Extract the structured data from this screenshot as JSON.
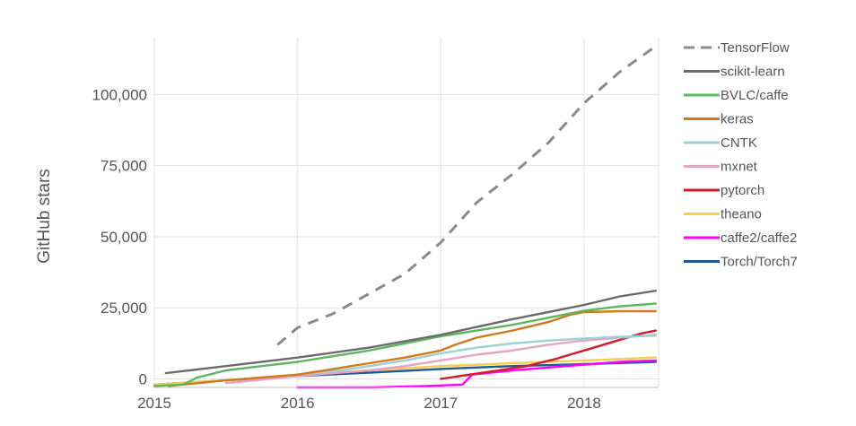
{
  "chart_data": {
    "type": "line",
    "title": "",
    "xlabel": "",
    "ylabel": "GitHub stars",
    "xlim": [
      2015.0,
      2018.52
    ],
    "ylim": [
      -3000,
      120000
    ],
    "xticks": [
      {
        "value": 2015,
        "label": "2015"
      },
      {
        "value": 2016,
        "label": "2016"
      },
      {
        "value": 2017,
        "label": "2017"
      },
      {
        "value": 2018,
        "label": "2018"
      }
    ],
    "yticks": [
      {
        "value": 0,
        "label": "0"
      },
      {
        "value": 25000,
        "label": "25,000"
      },
      {
        "value": 50000,
        "label": "50,000"
      },
      {
        "value": 75000,
        "label": "75,000"
      },
      {
        "value": 100000,
        "label": "100,000"
      }
    ],
    "grid": true,
    "legend_position": "right",
    "series": [
      {
        "name": "TensorFlow",
        "color": "#8a8a8a",
        "dashed": true,
        "x": [
          2015.86,
          2016.0,
          2016.25,
          2016.5,
          2016.75,
          2017.0,
          2017.25,
          2017.5,
          2017.75,
          2018.0,
          2018.25,
          2018.5
        ],
        "y": [
          12000,
          18000,
          23000,
          30000,
          37000,
          48000,
          62000,
          72000,
          83000,
          97000,
          108000,
          117000
        ]
      },
      {
        "name": "scikit-learn",
        "color": "#6b6b6b",
        "dashed": false,
        "x": [
          2015.08,
          2015.5,
          2016.0,
          2016.5,
          2017.0,
          2017.5,
          2018.0,
          2018.25,
          2018.5
        ],
        "y": [
          2000,
          4500,
          7500,
          11000,
          15500,
          21000,
          26000,
          29000,
          31000
        ]
      },
      {
        "name": "BVLC/caffe",
        "color": "#5cb85c",
        "dashed": false,
        "x": [
          2015.0,
          2015.2,
          2015.3,
          2015.5,
          2015.75,
          2016.0,
          2016.25,
          2016.5,
          2016.75,
          2017.0,
          2017.25,
          2017.5,
          2017.75,
          2018.0,
          2018.25,
          2018.5
        ],
        "y": [
          -2500,
          -2000,
          500,
          3000,
          4500,
          6000,
          8000,
          10000,
          12500,
          15000,
          17000,
          19000,
          21500,
          24000,
          25500,
          26500
        ]
      },
      {
        "name": "keras",
        "color": "#d07a1e",
        "dashed": false,
        "x": [
          2015.1,
          2015.5,
          2016.0,
          2016.25,
          2016.5,
          2016.75,
          2017.0,
          2017.1,
          2017.25,
          2017.5,
          2017.75,
          2017.9,
          2018.0,
          2018.25,
          2018.5
        ],
        "y": [
          -2500,
          -500,
          1500,
          3500,
          5500,
          7500,
          10000,
          12000,
          14500,
          17000,
          20000,
          22500,
          23500,
          23800,
          23800
        ]
      },
      {
        "name": "CNTK",
        "color": "#9ccfd6",
        "dashed": false,
        "x": [
          2016.0,
          2016.3,
          2016.5,
          2016.75,
          2017.0,
          2017.25,
          2017.5,
          2017.75,
          2018.0,
          2018.25,
          2018.5
        ],
        "y": [
          1500,
          3000,
          4500,
          6500,
          9000,
          11000,
          12500,
          13500,
          14200,
          14800,
          15200
        ]
      },
      {
        "name": "mxnet",
        "color": "#e6a3c3",
        "dashed": false,
        "x": [
          2015.5,
          2016.0,
          2016.5,
          2016.75,
          2017.0,
          2017.25,
          2017.5,
          2017.75,
          2018.0,
          2018.25,
          2018.5
        ],
        "y": [
          -1500,
          1000,
          3000,
          4500,
          6500,
          8500,
          10000,
          12000,
          13500,
          14500,
          15500
        ]
      },
      {
        "name": "pytorch",
        "color": "#d41a2c",
        "dashed": false,
        "x": [
          2017.0,
          2017.2,
          2017.4,
          2017.6,
          2017.8,
          2018.0,
          2018.2,
          2018.4,
          2018.5
        ],
        "y": [
          0,
          1500,
          3000,
          4500,
          7000,
          10000,
          13000,
          16000,
          17000
        ]
      },
      {
        "name": "theano",
        "color": "#f6cf4d",
        "dashed": false,
        "x": [
          2015.0,
          2015.5,
          2016.0,
          2016.5,
          2017.0,
          2017.5,
          2018.0,
          2018.5
        ],
        "y": [
          -2000,
          -500,
          1500,
          3000,
          4500,
          5500,
          6500,
          7500
        ]
      },
      {
        "name": "caffe2/caffe2",
        "color": "#ff00ff",
        "dashed": false,
        "x": [
          2016.0,
          2016.5,
          2016.9,
          2017.15,
          2017.22,
          2017.5,
          2017.75,
          2018.0,
          2018.25,
          2018.5
        ],
        "y": [
          -3000,
          -3000,
          -2500,
          -2000,
          1500,
          3000,
          4000,
          5000,
          6000,
          6500
        ]
      },
      {
        "name": "Torch/Torch7",
        "color": "#1f5a96",
        "dashed": false,
        "x": [
          2015.0,
          2015.5,
          2016.0,
          2016.5,
          2017.0,
          2017.5,
          2018.0,
          2018.5
        ],
        "y": [
          -2000,
          -500,
          1000,
          2200,
          3500,
          4500,
          5200,
          6000
        ]
      }
    ]
  }
}
